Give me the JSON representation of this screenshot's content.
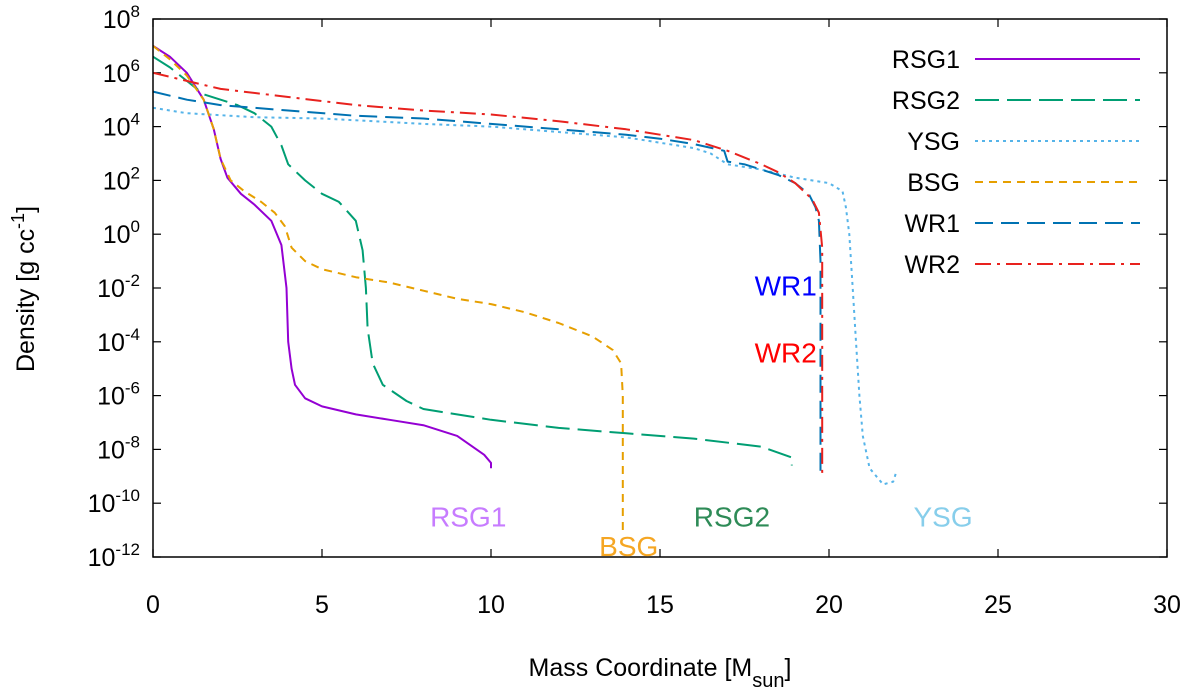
{
  "chart_data": {
    "type": "line",
    "title": "",
    "xlabel": {
      "text": "Mass Coordinate [M",
      "sub": "sun",
      "suffix": "]"
    },
    "ylabel": {
      "text": "Density [g cc",
      "sup": "-1",
      "suffix": "]"
    },
    "xlim": [
      0,
      30
    ],
    "ylim_log10": [
      -12,
      8
    ],
    "x_ticks": [
      {
        "value": 0,
        "label": "0"
      },
      {
        "value": 5,
        "label": "5"
      },
      {
        "value": 10,
        "label": "10"
      },
      {
        "value": 15,
        "label": "15"
      },
      {
        "value": 20,
        "label": "20"
      },
      {
        "value": 25,
        "label": "25"
      },
      {
        "value": 30,
        "label": "30"
      }
    ],
    "y_ticks": [
      {
        "exp": 8,
        "base": "10",
        "sup": "8"
      },
      {
        "exp": 6,
        "base": "10",
        "sup": "6"
      },
      {
        "exp": 4,
        "base": "10",
        "sup": "4"
      },
      {
        "exp": 2,
        "base": "10",
        "sup": "2"
      },
      {
        "exp": 0,
        "base": "10",
        "sup": "0"
      },
      {
        "exp": -2,
        "base": "10",
        "sup": "-2"
      },
      {
        "exp": -4,
        "base": "10",
        "sup": "-4"
      },
      {
        "exp": -6,
        "base": "10",
        "sup": "-6"
      },
      {
        "exp": -8,
        "base": "10",
        "sup": "-8"
      },
      {
        "exp": -10,
        "base": "10",
        "sup": "-10"
      },
      {
        "exp": -12,
        "base": "10",
        "sup": "-12"
      }
    ],
    "legend_position": "top-right",
    "series": [
      {
        "name": "RSG1",
        "color": "#9400d3",
        "dash": "solid",
        "points": [
          [
            0,
            7.0
          ],
          [
            0.5,
            6.6
          ],
          [
            1.0,
            6.0
          ],
          [
            1.5,
            5.0
          ],
          [
            1.8,
            3.9
          ],
          [
            2.0,
            2.8
          ],
          [
            2.2,
            2.1
          ],
          [
            2.6,
            1.5
          ],
          [
            3.0,
            1.1
          ],
          [
            3.5,
            0.5
          ],
          [
            3.8,
            -0.4
          ],
          [
            3.95,
            -2.0
          ],
          [
            4.0,
            -4.0
          ],
          [
            4.1,
            -5.0
          ],
          [
            4.2,
            -5.6
          ],
          [
            4.5,
            -6.1
          ],
          [
            5,
            -6.4
          ],
          [
            6,
            -6.7
          ],
          [
            7,
            -6.9
          ],
          [
            8,
            -7.1
          ],
          [
            9,
            -7.5
          ],
          [
            9.8,
            -8.2
          ],
          [
            10.0,
            -8.5
          ],
          [
            10.0,
            -8.7
          ]
        ]
      },
      {
        "name": "RSG2",
        "color": "#009e73",
        "dash": "24,8",
        "points": [
          [
            0,
            6.6
          ],
          [
            0.5,
            6.2
          ],
          [
            1.0,
            5.7
          ],
          [
            1.5,
            5.2
          ],
          [
            2,
            5.0
          ],
          [
            2.5,
            4.8
          ],
          [
            3,
            4.5
          ],
          [
            3.5,
            4.0
          ],
          [
            3.8,
            3.3
          ],
          [
            4.0,
            2.6
          ],
          [
            4.5,
            2.0
          ],
          [
            5.0,
            1.5
          ],
          [
            5.5,
            1.2
          ],
          [
            6.0,
            0.5
          ],
          [
            6.2,
            -0.6
          ],
          [
            6.3,
            -2.0
          ],
          [
            6.35,
            -3.5
          ],
          [
            6.5,
            -4.8
          ],
          [
            6.8,
            -5.6
          ],
          [
            7.5,
            -6.2
          ],
          [
            8,
            -6.5
          ],
          [
            10,
            -6.9
          ],
          [
            12,
            -7.2
          ],
          [
            14,
            -7.4
          ],
          [
            16,
            -7.6
          ],
          [
            18,
            -7.9
          ],
          [
            18.9,
            -8.3
          ],
          [
            18.9,
            -8.6
          ]
        ]
      },
      {
        "name": "YSG",
        "color": "#56b4e9",
        "dash": "3,4",
        "points": [
          [
            0,
            4.7
          ],
          [
            1,
            4.5
          ],
          [
            3,
            4.35
          ],
          [
            5,
            4.3
          ],
          [
            8,
            4.1
          ],
          [
            10,
            4.0
          ],
          [
            12,
            3.8
          ],
          [
            14,
            3.6
          ],
          [
            15,
            3.4
          ],
          [
            16,
            3.2
          ],
          [
            16.5,
            3.0
          ],
          [
            17,
            2.6
          ],
          [
            18,
            2.4
          ],
          [
            19,
            2.1
          ],
          [
            20,
            1.9
          ],
          [
            20.4,
            1.6
          ],
          [
            20.5,
            1.0
          ],
          [
            20.6,
            0.0
          ],
          [
            20.7,
            -2.0
          ],
          [
            20.8,
            -4.0
          ],
          [
            20.9,
            -6.0
          ],
          [
            21.0,
            -7.5
          ],
          [
            21.2,
            -8.7
          ],
          [
            21.6,
            -9.3
          ],
          [
            21.9,
            -9.2
          ],
          [
            22.0,
            -8.8
          ]
        ]
      },
      {
        "name": "BSG",
        "color": "#e69f00",
        "dash": "8,6",
        "points": [
          [
            0,
            7.0
          ],
          [
            0.5,
            6.5
          ],
          [
            1.0,
            5.9
          ],
          [
            1.5,
            5.0
          ],
          [
            1.8,
            3.9
          ],
          [
            2.0,
            2.8
          ],
          [
            2.3,
            2.0
          ],
          [
            2.7,
            1.6
          ],
          [
            3.2,
            1.2
          ],
          [
            3.6,
            0.8
          ],
          [
            3.9,
            0.3
          ],
          [
            4.1,
            -0.5
          ],
          [
            4.5,
            -1.0
          ],
          [
            5,
            -1.3
          ],
          [
            6,
            -1.6
          ],
          [
            7,
            -1.8
          ],
          [
            8,
            -2.1
          ],
          [
            9,
            -2.4
          ],
          [
            10,
            -2.6
          ],
          [
            11,
            -2.9
          ],
          [
            12,
            -3.3
          ],
          [
            13,
            -3.8
          ],
          [
            13.6,
            -4.3
          ],
          [
            13.85,
            -4.8
          ],
          [
            13.9,
            -6.0
          ],
          [
            13.9,
            -8.0
          ],
          [
            13.9,
            -11.0
          ]
        ]
      },
      {
        "name": "WR1",
        "color": "#0072b2",
        "dash": "18,8",
        "points": [
          [
            0,
            5.3
          ],
          [
            1,
            5.0
          ],
          [
            2,
            4.8
          ],
          [
            4,
            4.6
          ],
          [
            6,
            4.4
          ],
          [
            8,
            4.3
          ],
          [
            10,
            4.1
          ],
          [
            12,
            3.9
          ],
          [
            14,
            3.7
          ],
          [
            15,
            3.55
          ],
          [
            16,
            3.35
          ],
          [
            16.9,
            3.1
          ],
          [
            17.0,
            2.7
          ],
          [
            17.5,
            2.6
          ],
          [
            18,
            2.4
          ],
          [
            18.5,
            2.2
          ],
          [
            19,
            1.9
          ],
          [
            19.4,
            1.5
          ],
          [
            19.6,
            1.0
          ],
          [
            19.7,
            0.5
          ],
          [
            19.75,
            -1.0
          ],
          [
            19.75,
            -9.0
          ]
        ]
      },
      {
        "name": "WR2",
        "color": "#e8221e",
        "dash": "16,6,3,6",
        "points": [
          [
            0,
            6.0
          ],
          [
            1,
            5.7
          ],
          [
            2,
            5.4
          ],
          [
            4,
            5.1
          ],
          [
            6,
            4.8
          ],
          [
            8,
            4.6
          ],
          [
            10,
            4.45
          ],
          [
            12,
            4.2
          ],
          [
            14,
            3.9
          ],
          [
            15,
            3.7
          ],
          [
            16,
            3.5
          ],
          [
            17,
            3.1
          ],
          [
            17.6,
            2.8
          ],
          [
            18,
            2.6
          ],
          [
            18.5,
            2.3
          ],
          [
            19,
            1.9
          ],
          [
            19.5,
            1.3
          ],
          [
            19.7,
            0.8
          ],
          [
            19.8,
            -0.5
          ],
          [
            19.8,
            -9.0
          ]
        ]
      }
    ],
    "annotations": [
      {
        "text": "WR1",
        "x": 17.8,
        "log10y": -1.9,
        "color": "#0000ff"
      },
      {
        "text": "WR2",
        "x": 17.8,
        "log10y": -4.4,
        "color": "#ff0000"
      },
      {
        "text": "RSG1",
        "x": 8.2,
        "log10y": -10.5,
        "color": "#c77cff"
      },
      {
        "text": "BSG",
        "x": 13.2,
        "log10y": -11.6,
        "color": "#f5a623"
      },
      {
        "text": "RSG2",
        "x": 16.0,
        "log10y": -10.5,
        "color": "#2e8b57"
      },
      {
        "text": "YSG",
        "x": 22.5,
        "log10y": -10.5,
        "color": "#87ceeb"
      }
    ]
  }
}
